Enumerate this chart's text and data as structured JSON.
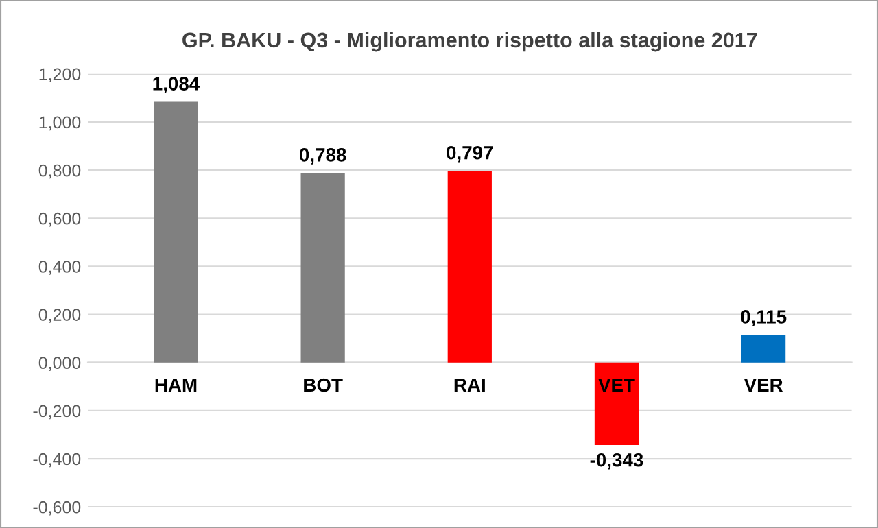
{
  "chart_data": {
    "type": "bar",
    "title": "GP. BAKU - Q3 - Miglioramento rispetto alla stagione 2017",
    "categories": [
      "HAM",
      "BOT",
      "RAI",
      "VET",
      "VER"
    ],
    "values": [
      1.084,
      0.788,
      0.797,
      -0.343,
      0.115
    ],
    "colors": [
      "#808080",
      "#808080",
      "#ff0000",
      "#ff0000",
      "#0070c0"
    ],
    "value_labels": [
      "1,084",
      "0,788",
      "0,797",
      "-0,343",
      "0,115"
    ],
    "ylim": [
      -0.6,
      1.2
    ],
    "yticks": [
      {
        "value": -0.6,
        "label": "-0,600"
      },
      {
        "value": -0.4,
        "label": "-0,400"
      },
      {
        "value": -0.2,
        "label": "-0,200"
      },
      {
        "value": 0,
        "label": "0,000"
      },
      {
        "value": 0.2,
        "label": "0,200"
      },
      {
        "value": 0.4,
        "label": "0,400"
      },
      {
        "value": 0.6,
        "label": "0,600"
      },
      {
        "value": 0.8,
        "label": "0,800"
      },
      {
        "value": 1.0,
        "label": "1,000"
      },
      {
        "value": 1.2,
        "label": "1,200"
      }
    ],
    "grid": "y"
  }
}
